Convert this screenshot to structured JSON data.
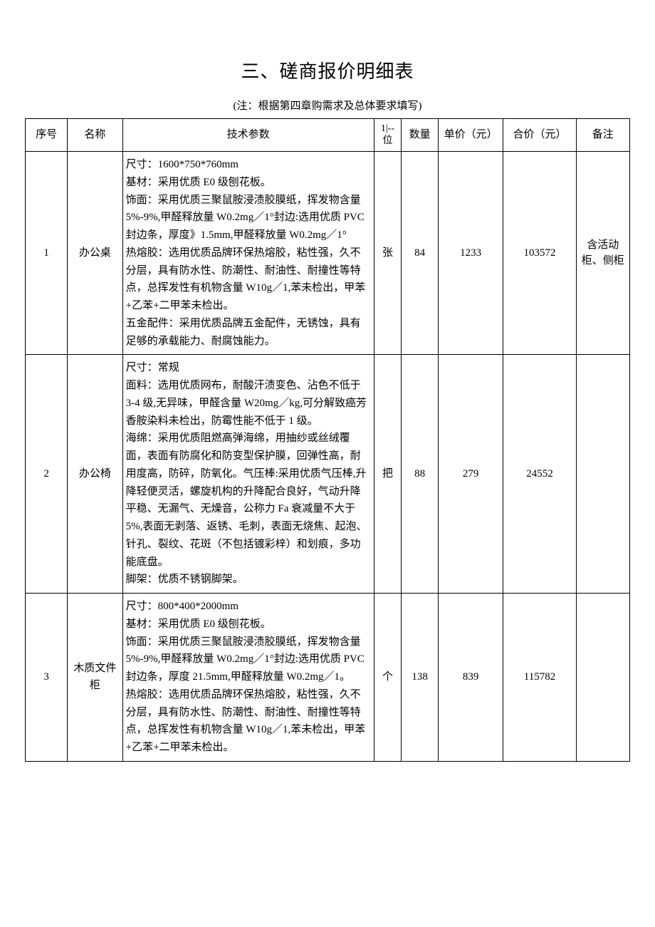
{
  "document": {
    "title": "三、磋商报价明细表",
    "subtitle": "(注：根据第四章购需求及总体要求填写)"
  },
  "table": {
    "headers": {
      "seq": "序号",
      "name": "名称",
      "spec": "技术参数",
      "unit_line1": "1|--",
      "unit_line2": "位",
      "qty": "数量",
      "price": "单价（元）",
      "total": "合价（元）",
      "remark": "备注"
    },
    "rows": [
      {
        "seq": "1",
        "name": "办公桌",
        "spec": "尺寸：1600*750*760mm\n基材：采用优质 E0 级刨花板。\n饰面：采用优质三聚鼠胺浸渍胶膜纸，挥发物含量 5%-9%,甲醛释放量 W0.2mg／1°封边:选用优质 PVC 封边条，厚度》1.5mm,甲醛释放量 W0.2mg／1°\n热熔胶：选用优质品牌环保热熔胶，粘性强，久不分层，具有防水性、防潮性、耐油性、耐撞性等特点，总挥发性有机物含量 W10g／1,苯未检出，甲苯+乙苯+二甲苯未检出。\n五金配件：采用优质品牌五金配件，无锈蚀，具有足够的承载能力、耐腐蚀能力。",
        "unit": "张",
        "qty": "84",
        "price": "1233",
        "total": "103572",
        "remark": "含活动柜、侧柜"
      },
      {
        "seq": "2",
        "name": "办公椅",
        "spec": "尺寸：常规\n面料：选用优质网布，耐酸汗渍变色、沾色不低于 3-4 级,无异味，甲醛含量 W20mg／kg,可分解致癌芳香胺染料未检出，防霉性能不低于 1 级。\n海绵：采用优质阻燃高弹海绵，用抽纱或丝绒覆面，表面有防腐化和防变型保护膜，回弹性高，耐用度高，防碎，防氧化。气压棒:采用优质气压棒,升降轻便灵活，螺旋机构的升降配合良好，气动升降平稳、无漏气、无燥音，公称力 Fa 衰减量不大于 5%,表面无剥落、返锈、毛刺，表面无烧焦、起泡、针孔、裂纹、花斑（不包括镀彩梓）和划痕，多功能底盘。\n脚架：优质不锈钢脚架。",
        "unit": "把",
        "qty": "88",
        "price": "279",
        "total": "24552",
        "remark": ""
      },
      {
        "seq": "3",
        "name": "木质文件柜",
        "spec": "尺寸：800*400*2000mm\n基材：采用优质 E0 级刨花板。\n饰面：采用优质三聚鼠胺浸渍胶膜纸，挥发物含量 5%-9%,甲醛释放量 W0.2mg／1°封边:选用优质 PVC 封边条，厚度 21.5mm,甲醛释放量 W0.2mg／1。\n热熔胶：选用优质品牌环保热熔胶，粘性强，久不分层，具有防水性、防潮性、耐油性、耐撞性等特点，总挥发性有机物含量 W10g／1,苯未检出，甲苯+乙苯+二甲苯未检出。",
        "unit": "个",
        "qty": "138",
        "price": "839",
        "total": "115782",
        "remark": ""
      }
    ]
  },
  "styles": {
    "title_fontsize": 26,
    "subtitle_fontsize": 15,
    "cell_fontsize": 15,
    "border_color": "#000000",
    "background_color": "#ffffff",
    "text_color": "#000000",
    "column_widths": {
      "seq": 55,
      "name": 72,
      "spec": 328,
      "unit": 36,
      "qty": 48,
      "price": 85,
      "total": 95,
      "remark": 70
    }
  }
}
